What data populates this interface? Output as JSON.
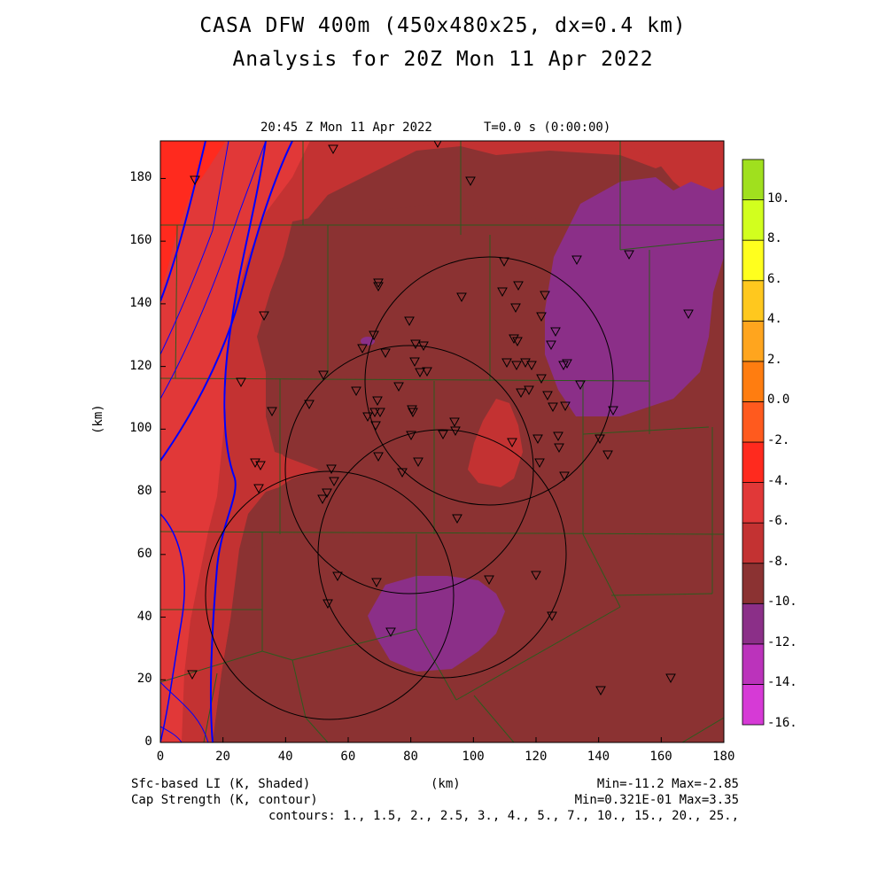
{
  "header": {
    "title_line1": "CASA DFW 400m (450x480x25, dx=0.4 km)",
    "title_line2": "Analysis for 20Z Mon 11 Apr 2022",
    "valid_time": "20:45 Z Mon 11 Apr 2022",
    "t_label": "T=0.0 s (0:00:00)"
  },
  "axes": {
    "x_unit": "(km)",
    "y_unit": "(km)",
    "x_ticks": [
      "0",
      "20",
      "40",
      "60",
      "80",
      "100",
      "120",
      "140",
      "160",
      "180"
    ],
    "y_ticks": [
      "0",
      "20",
      "40",
      "60",
      "80",
      "100",
      "120",
      "140",
      "160",
      "180"
    ],
    "x_range": [
      0,
      180
    ],
    "y_range": [
      0,
      192
    ]
  },
  "colorbar": {
    "levels": [
      "-16.",
      "-14.",
      "-12.",
      "-10.",
      "-8.",
      "-6.",
      "-4.",
      "-2.",
      "0.0",
      "2.",
      "4.",
      "6.",
      "8.",
      "10."
    ],
    "colors": [
      "#d63ad6",
      "#bb33bb",
      "#8b2f88",
      "#8b3232",
      "#c33232",
      "#e13838",
      "#ff2a1e",
      "#ff5a1e",
      "#ff7d10",
      "#ffa51e",
      "#ffc81e",
      "#ffff1e",
      "#d2ff1e",
      "#a0e01e"
    ]
  },
  "footer": {
    "shaded_label": "Sfc-based LI (K, Shaded)",
    "contour_label": "Cap Strength (K, contour)",
    "km_label": "(km)",
    "minmax1": "Min=-11.2 Max=-2.85",
    "minmax2": "Min=0.321E-01 Max=3.35",
    "contours": "contours: 1., 1.5, 2., 2.5, 3., 4., 5., 7., 10., 15., 20., 25.,"
  },
  "colors": {
    "dark_maroon": "#8b3232",
    "mid_red": "#c33232",
    "bright_red": "#e13838",
    "deep_red": "#ff2a1e",
    "purple": "#8b2f88",
    "contour_blue": "#0000ff",
    "county_green": "#2d5a1e"
  },
  "icons": {
    "station_marker": "down-triangle-icon",
    "radar_ring": "range-ring-circle"
  }
}
